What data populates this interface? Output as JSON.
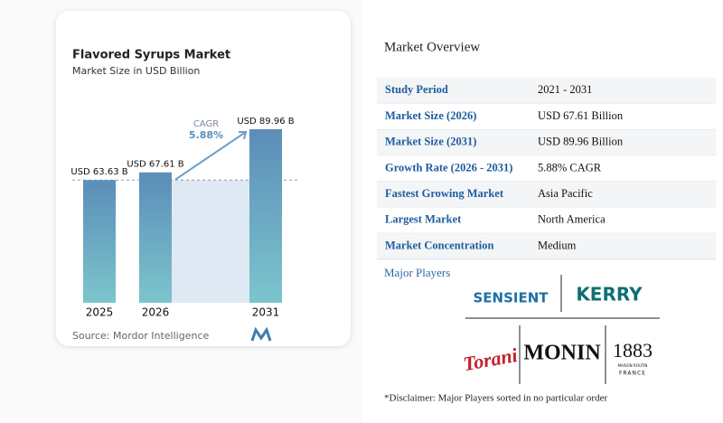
{
  "chart_data": {
    "type": "bar",
    "title": "Flavored Syrups Market",
    "subtitle": "Market Size in USD Billion",
    "categories": [
      "2025",
      "2026",
      "2031"
    ],
    "values": [
      63.63,
      67.61,
      89.96
    ],
    "value_labels": [
      "USD 63.63 B",
      "USD 67.61 B",
      "USD 89.96 B"
    ],
    "annotation": {
      "label": "CAGR",
      "value": "5.88%"
    },
    "source": "Source: Mordor Intelligence"
  },
  "overview": {
    "title": "Market Overview",
    "rows": [
      [
        "Study Period",
        "2021 - 2031"
      ],
      [
        "Market Size (2026)",
        "USD 67.61 Billion"
      ],
      [
        "Market Size (2031)",
        "USD 89.96 Billion"
      ],
      [
        "Growth Rate (2026 - 2031)",
        "5.88% CAGR"
      ],
      [
        "Fastest Growing Market",
        "Asia Pacific"
      ],
      [
        "Largest Market",
        "North America"
      ],
      [
        "Market Concentration",
        "Medium"
      ]
    ]
  },
  "players": {
    "title": "Major Players",
    "logos": [
      "SENSIENT",
      "KERRY",
      "Torani",
      "MONIN",
      "1883",
      "MAISON ROUTIN",
      "FRANCE"
    ],
    "disclaimer": "*Disclaimer: Major Players sorted in no particular order"
  }
}
